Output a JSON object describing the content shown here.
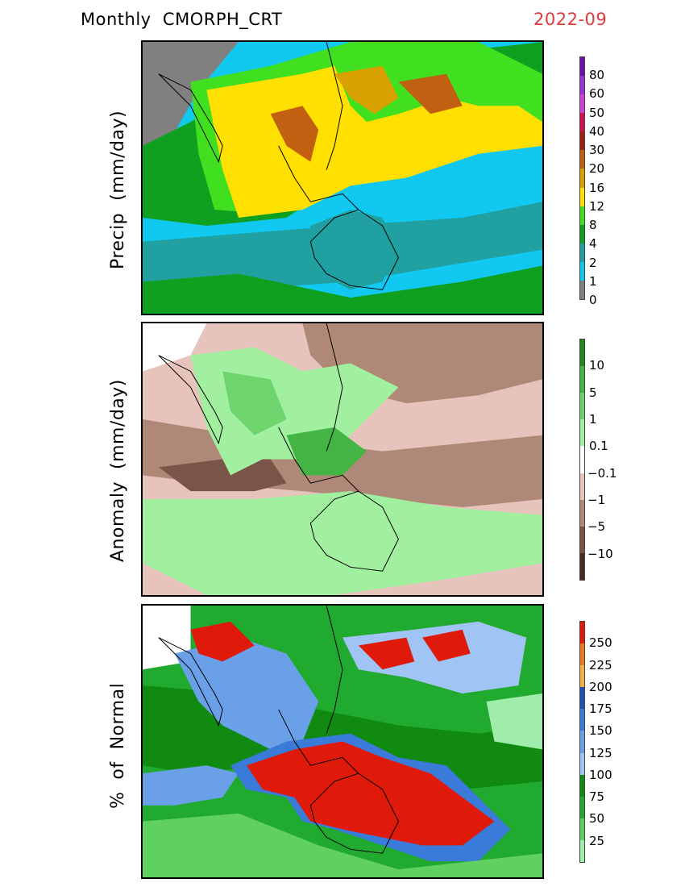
{
  "header": {
    "title": "Monthly  CMORPH_CRT",
    "date": "2022-09"
  },
  "panels": {
    "precip": {
      "ylabel": "Precip  (mm/day)",
      "colorbar": {
        "colors": [
          "#6a0fb0",
          "#9a30d8",
          "#d040d8",
          "#d01050",
          "#a02010",
          "#c06010",
          "#d8a000",
          "#ffe000",
          "#40e020",
          "#10a020",
          "#20a0a0",
          "#10c8f0",
          "#808080"
        ],
        "ticks": [
          "80",
          "60",
          "50",
          "40",
          "30",
          "20",
          "16",
          "12",
          "8",
          "4",
          "2",
          "1",
          "0"
        ]
      }
    },
    "anomaly": {
      "ylabel": "Anomaly  (mm/day)",
      "colorbar": {
        "colors": [
          "#1e8a1e",
          "#44b444",
          "#6ed46e",
          "#a0f0a0",
          "#ffffff",
          "#e6c4bc",
          "#b08878",
          "#7a5448",
          "#4a2a20"
        ],
        "ticks": [
          "10",
          "5",
          "1",
          "0.1",
          "−0.1",
          "−1",
          "−5",
          "−10"
        ]
      }
    },
    "percent": {
      "ylabel": "%  of  Normal",
      "colorbar": {
        "colors": [
          "#e01a0a",
          "#f07820",
          "#f4b040",
          "#1e50b8",
          "#3a7ad8",
          "#6aa0e8",
          "#a0c4f4",
          "#108a10",
          "#20aa30",
          "#60d060",
          "#a0ecaa"
        ],
        "ticks": [
          "250",
          "225",
          "200",
          "175",
          "150",
          "125",
          "100",
          "75",
          "50",
          "25"
        ]
      }
    }
  }
}
